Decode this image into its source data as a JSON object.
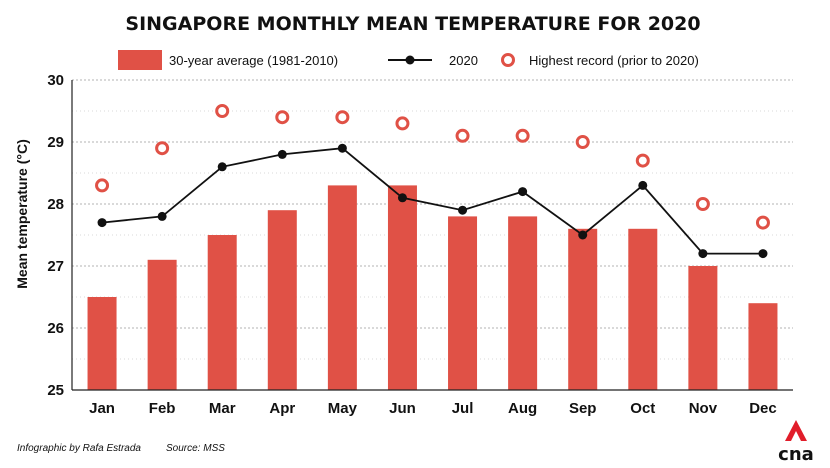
{
  "chart_data": {
    "type": "bar",
    "title": "SINGAPORE MONTHLY MEAN TEMPERATURE FOR 2020",
    "ylabel": "Mean temperature (°C)",
    "xlabel": "",
    "ylim": [
      25,
      30
    ],
    "yticks": [
      25,
      26,
      27,
      28,
      29,
      30
    ],
    "grid": true,
    "legend_position": "top",
    "categories": [
      "Jan",
      "Feb",
      "Mar",
      "Apr",
      "May",
      "Jun",
      "Jul",
      "Aug",
      "Sep",
      "Oct",
      "Nov",
      "Dec"
    ],
    "series": [
      {
        "name": "30-year average (1981-2010)",
        "kind": "bar",
        "color": "#e05146",
        "values": [
          26.5,
          27.1,
          27.5,
          27.9,
          28.3,
          28.3,
          27.8,
          27.8,
          27.6,
          27.6,
          27.0,
          26.4
        ]
      },
      {
        "name": "2020",
        "kind": "line",
        "color": "#111111",
        "values": [
          27.7,
          27.8,
          28.6,
          28.8,
          28.9,
          28.1,
          27.9,
          28.2,
          27.5,
          28.3,
          27.2,
          27.2
        ]
      },
      {
        "name": "Highest record (prior to 2020)",
        "kind": "marker",
        "color": "#e05146",
        "values": [
          28.3,
          28.9,
          29.5,
          29.4,
          29.4,
          29.3,
          29.1,
          29.1,
          29.0,
          28.7,
          28.0,
          27.7
        ]
      }
    ]
  },
  "footer": {
    "credit": "Infographic by Rafa Estrada",
    "source": "Source: MSS"
  },
  "logo": {
    "text": "cna",
    "color": "#e11d2a"
  }
}
